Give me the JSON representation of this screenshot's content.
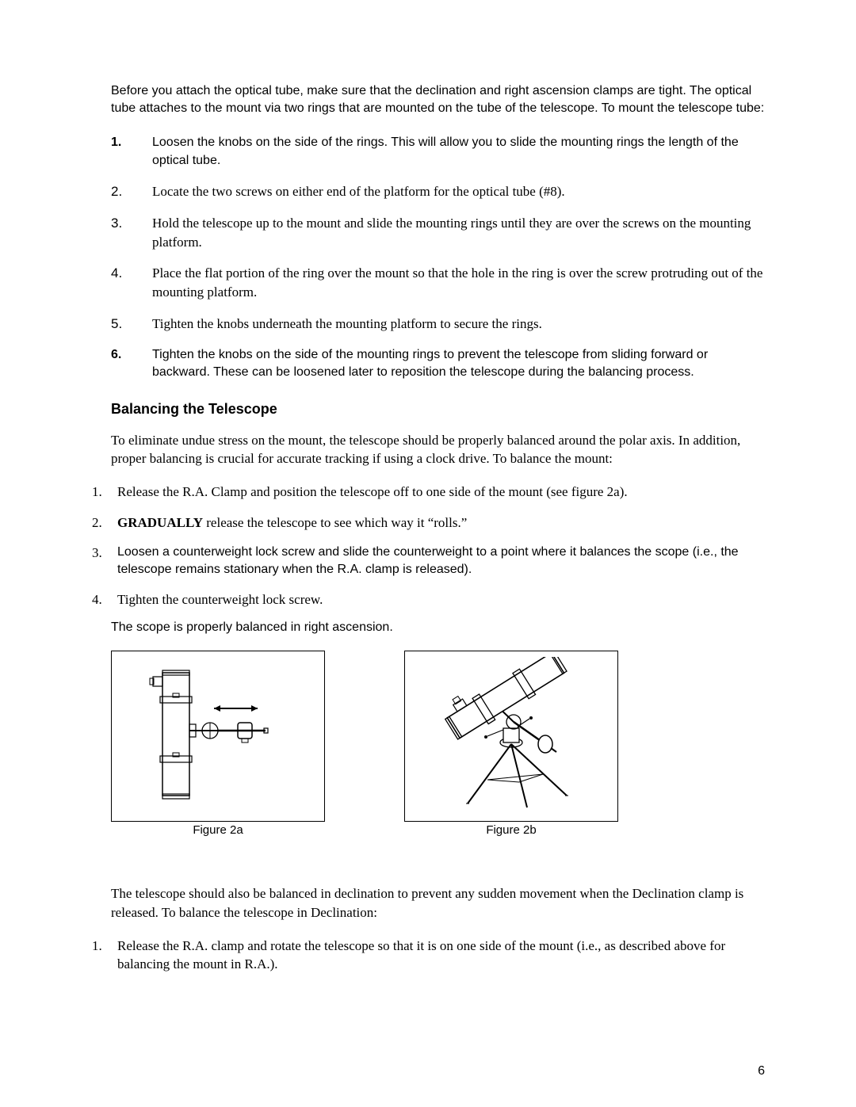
{
  "intro": "Before you attach the optical tube, make sure that the declination and right ascension clamps are tight.  The optical tube attaches to the mount via two rings that are mounted on the tube of the telescope.  To mount the telescope tube:",
  "list1": [
    {
      "n": "1.",
      "style": "sans bold",
      "text": "Loosen the knobs on the side of the rings.  This will allow you to slide the mounting rings the length of the optical tube."
    },
    {
      "n": "2.",
      "style": "serif",
      "text": "Locate the two screws on either end of the platform for the optical tube (#8)."
    },
    {
      "n": "3.",
      "style": "serif",
      "text": "Hold the telescope up to the mount and slide the mounting rings until they are over the screws on the mounting platform."
    },
    {
      "n": "4.",
      "style": "serif",
      "text": "Place the flat portion of the ring over the mount so that the hole in the ring is over the screw protruding out of the mounting platform."
    },
    {
      "n": "5.",
      "style": "serif",
      "text": "Tighten the knobs underneath the mounting platform to secure the rings."
    },
    {
      "n": "6.",
      "style": "sans bold",
      "text": "Tighten the knobs on the side of the mounting rings to prevent the telescope from sliding forward or backward.  These can be loosened later to reposition the telescope during the balancing process."
    }
  ],
  "section_heading": "Balancing the Telescope",
  "balance_intro": "To eliminate undue stress on the mount, the telescope should be properly balanced around the polar axis.  In addition, proper balancing is crucial for accurate tracking if using a clock drive.  To balance the mount:",
  "list2": [
    {
      "n": "1.",
      "html": "<span class='serif'>Release the R.A. Clamp and position the telescope off to one side of the mount (see figure 2a).</span>"
    },
    {
      "n": "2.",
      "html": "<span class='serif'><b>GRADUALLY</b> release the telescope to see which way it “rolls.”</span>"
    },
    {
      "n": "3.",
      "html": "<span class='sans'>Loosen a counterweight lock screw and slide the counterweight to a point where it balances the scope (i.e., the telescope remains stationary when the R.A. clamp is released).</span>"
    },
    {
      "n": "4.",
      "html": "<span class='serif'>Tighten the counterweight lock screw.</span>"
    }
  ],
  "balanced_line": "The scope is properly balanced in right ascension.",
  "figure_a_caption": "Figure 2a",
  "figure_b_caption": "Figure 2b",
  "declination_intro": "The telescope should also be balanced in declination to prevent any sudden movement when the Declination clamp is released.  To balance the telescope in Declination:",
  "list3": [
    {
      "n": "1.",
      "text": "Release the R.A. clamp and rotate the telescope so that it is on one side of the mount (i.e., as described above for balancing the mount in R.A.)."
    }
  ],
  "page_number": "6"
}
